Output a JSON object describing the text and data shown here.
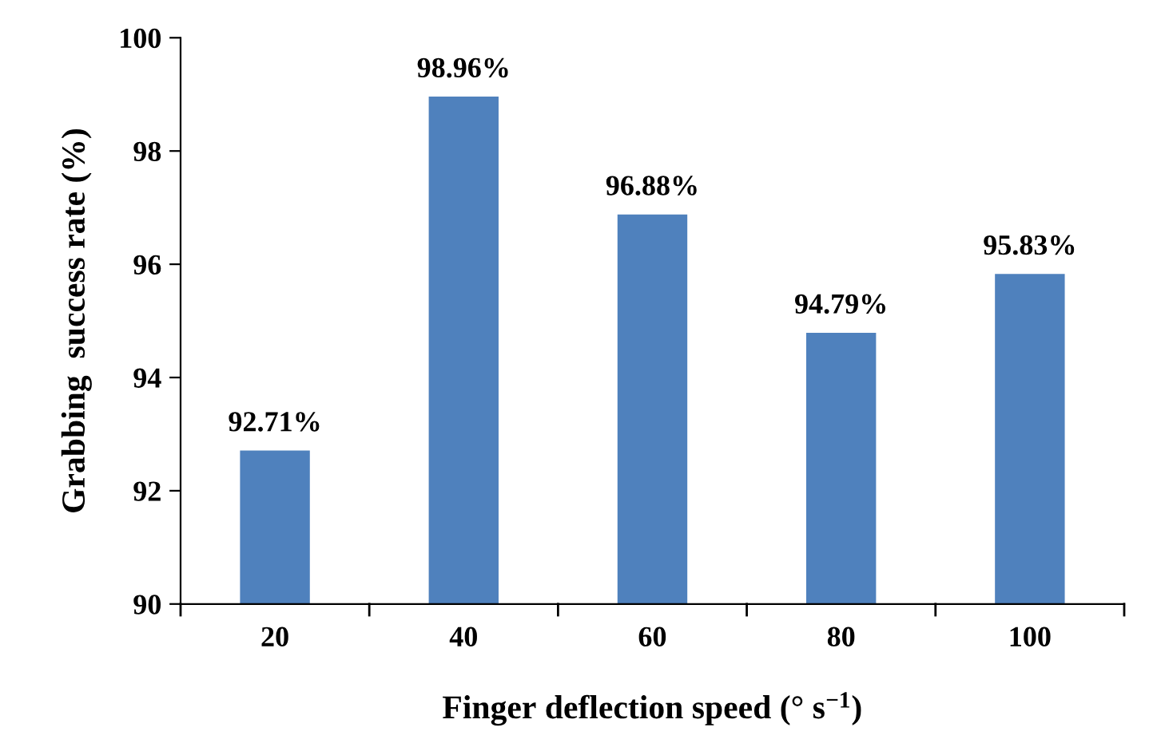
{
  "chart_data": {
    "type": "bar",
    "xlabel": "Finger deflection speed (° s$^{−1}$)",
    "ylabel": "Grabbing  success rate (%)",
    "categories": [
      "20",
      "40",
      "60",
      "80",
      "100"
    ],
    "values": [
      92.71,
      98.96,
      96.88,
      94.79,
      95.83
    ],
    "value_labels": [
      "92.71%",
      "98.96%",
      "96.88%",
      "94.79%",
      "95.83%"
    ],
    "color": "#4f81bd",
    "ylim": [
      90,
      100
    ],
    "yticks": [
      90,
      92,
      94,
      96,
      98,
      100
    ],
    "grid": false,
    "legend": false
  }
}
